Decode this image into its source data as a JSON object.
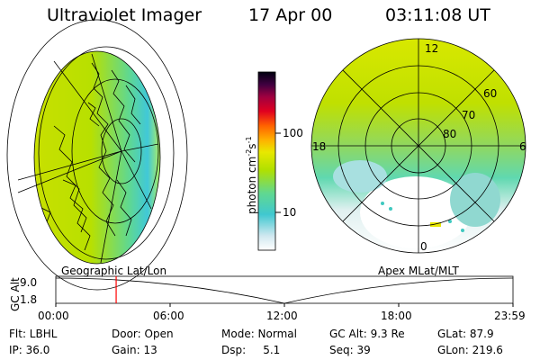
{
  "header": {
    "title": "Ultraviolet Imager",
    "date": "17 Apr 00",
    "time": "03:11:08 UT"
  },
  "colorbar": {
    "label": "photon cm",
    "label_exp1": "-2",
    "label_s": "s",
    "label_exp2": "-1",
    "ticks": [
      "100",
      "10"
    ]
  },
  "polar_plot": {
    "mlt_labels": [
      "12",
      "18",
      "6",
      "0"
    ],
    "lat_labels": [
      "60",
      "70",
      "80"
    ]
  },
  "altitude_panel": {
    "left_title": "Geographic Lat/Lon",
    "right_title": "Apex MLat/MLT",
    "y_axis_label": "GC Alt",
    "y_ticks": [
      "9.0",
      "1.8"
    ],
    "x_ticks": [
      "00:00",
      "06:00",
      "12:00",
      "18:00",
      "23:59"
    ],
    "marker_time_fraction": 0.132,
    "marker_color": "#ff0000"
  },
  "info": {
    "row1": {
      "filter": "Flt: LBHL",
      "door": "Door: Open",
      "mode": "Mode: Normal",
      "gc_alt": "GC Alt: 9.3 Re",
      "glat": "GLat:  87.9"
    },
    "row2": {
      "ip": "IP: 36.0",
      "gain": "Gain: 13",
      "dsp": "Dsp:     5.1",
      "seq": "Seq: 39",
      "glon": "GLon: 219.6"
    }
  }
}
